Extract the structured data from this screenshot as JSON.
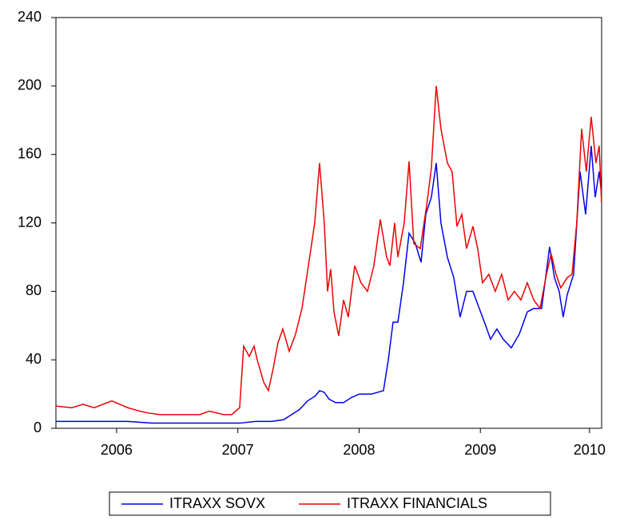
{
  "chart_data": {
    "type": "line",
    "xlim": [
      2006.0,
      2010.5
    ],
    "xticks": [
      {
        "value": 2006.5,
        "label": "2006"
      },
      {
        "value": 2007.5,
        "label": "2007"
      },
      {
        "value": 2008.5,
        "label": "2008"
      },
      {
        "value": 2009.5,
        "label": "2009"
      },
      {
        "value": 2010.4,
        "label": "2010"
      }
    ],
    "ylim": [
      0,
      240
    ],
    "yticks": [
      0,
      40,
      80,
      120,
      160,
      200,
      240
    ],
    "series": [
      {
        "name": "ITRAXX SOVX",
        "color": "#0000ee",
        "x": [
          2006.0,
          2006.527,
          2006.593,
          2006.791,
          2007.186,
          2007.515,
          2007.647,
          2007.779,
          2007.877,
          2007.943,
          2008.009,
          2008.075,
          2008.141,
          2008.174,
          2008.213,
          2008.253,
          2008.306,
          2008.372,
          2008.437,
          2008.503,
          2008.602,
          2008.701,
          2008.741,
          2008.78,
          2008.82,
          2008.866,
          2008.912,
          2008.964,
          2009.011,
          2009.05,
          2009.096,
          2009.136,
          2009.175,
          2009.228,
          2009.281,
          2009.333,
          2009.386,
          2009.439,
          2009.491,
          2009.544,
          2009.584,
          2009.636,
          2009.689,
          2009.755,
          2009.821,
          2009.887,
          2009.94,
          2010.005,
          2010.071,
          2010.111,
          2010.15,
          2010.183,
          2010.216,
          2010.269,
          2010.322,
          2010.368,
          2010.414,
          2010.447,
          2010.48,
          2010.499
        ],
        "values": [
          4,
          4,
          4,
          3,
          3,
          3,
          4,
          4,
          5,
          8,
          11,
          16,
          19,
          22,
          21,
          17,
          15,
          15,
          18,
          20,
          20,
          22,
          40,
          62,
          62,
          85,
          114,
          108,
          97,
          125,
          135,
          155,
          120,
          100,
          88,
          65,
          80,
          80,
          70,
          60,
          52,
          58,
          52,
          47,
          55,
          68,
          70,
          70,
          106,
          88,
          80,
          65,
          78,
          90,
          150,
          125,
          165,
          135,
          150,
          137
        ]
      },
      {
        "name": "ITRAXX FINANCIALS",
        "color": "#ee0000",
        "x": [
          2006.0,
          2006.132,
          2006.224,
          2006.316,
          2006.461,
          2006.593,
          2006.692,
          2006.758,
          2006.856,
          2007.054,
          2007.186,
          2007.265,
          2007.383,
          2007.449,
          2007.515,
          2007.548,
          2007.594,
          2007.634,
          2007.66,
          2007.713,
          2007.752,
          2007.792,
          2007.831,
          2007.871,
          2007.924,
          2007.976,
          2008.029,
          2008.082,
          2008.134,
          2008.174,
          2008.213,
          2008.24,
          2008.266,
          2008.293,
          2008.332,
          2008.372,
          2008.411,
          2008.464,
          2008.516,
          2008.569,
          2008.622,
          2008.675,
          2008.727,
          2008.754,
          2008.793,
          2008.82,
          2008.872,
          2008.912,
          2008.951,
          2009.004,
          2009.057,
          2009.096,
          2009.136,
          2009.175,
          2009.228,
          2009.267,
          2009.307,
          2009.347,
          2009.386,
          2009.439,
          2009.478,
          2009.518,
          2009.57,
          2009.623,
          2009.676,
          2009.729,
          2009.781,
          2009.834,
          2009.887,
          2009.94,
          2009.992,
          2010.045,
          2010.084,
          2010.124,
          2010.163,
          2010.216,
          2010.256,
          2010.295,
          2010.335,
          2010.374,
          2010.414,
          2010.453,
          2010.48,
          2010.499
        ],
        "values": [
          13,
          12,
          14,
          12,
          16,
          12,
          10,
          9,
          8,
          8,
          8,
          10,
          8,
          8,
          12,
          48,
          42,
          48,
          40,
          27,
          22,
          35,
          50,
          58,
          45,
          55,
          70,
          95,
          120,
          155,
          120,
          80,
          93,
          68,
          54,
          75,
          65,
          95,
          85,
          80,
          95,
          122,
          100,
          95,
          120,
          100,
          120,
          156,
          108,
          105,
          130,
          152,
          200,
          175,
          155,
          150,
          118,
          125,
          105,
          118,
          105,
          85,
          90,
          80,
          90,
          75,
          80,
          75,
          85,
          75,
          70,
          90,
          102,
          90,
          82,
          88,
          90,
          120,
          175,
          150,
          182,
          155,
          165,
          132
        ]
      }
    ]
  }
}
